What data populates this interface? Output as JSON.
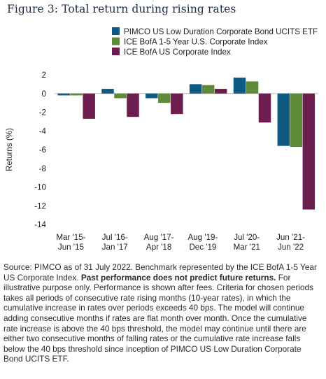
{
  "figure_title": "Figure 3: Total return during rising rates",
  "chart_data": {
    "type": "bar",
    "title": "",
    "xlabel": "",
    "ylabel": "Returns (%)",
    "ylim": [
      -14,
      2
    ],
    "yticks": [
      2,
      0,
      -2,
      -4,
      -6,
      -8,
      -10,
      -12,
      -14
    ],
    "grid": false,
    "legend_position": "top-right",
    "categories": [
      [
        "Mar '15-",
        "Jun '15"
      ],
      [
        "Jul '16-",
        "Jan '17"
      ],
      [
        "Aug '17-",
        "Apr '18"
      ],
      [
        "Aug '19-",
        "Dec '19"
      ],
      [
        "Jul '20-",
        "Mar '21"
      ],
      [
        "Jun '21-",
        "Jun '22"
      ]
    ],
    "series": [
      {
        "name": "PIMCO US Low Duration Corporate Bond UCITS ETF",
        "color": "#0e5a82",
        "values": [
          -0.2,
          0.5,
          -0.5,
          1.0,
          1.7,
          -5.6
        ]
      },
      {
        "name": "ICE BofA 1-5 Year U.S. Corporate Index",
        "color": "#5f8a3a",
        "values": [
          -0.2,
          -0.5,
          -1.0,
          0.9,
          1.3,
          -5.7
        ]
      },
      {
        "name": "ICE BofA US Corporate Index",
        "color": "#6c1f4e",
        "values": [
          -2.7,
          -2.5,
          -2.2,
          0.5,
          -3.1,
          -12.4
        ]
      }
    ]
  },
  "footnote": {
    "lead": "Source: PIMCO as of 31 July 2022. Benchmark represented by the ICE BofA 1-5 Year US Corporate Index.",
    "bold": "Past performance does not predict future returns.",
    "body": "For illustrative purpose only. Performance is shown after fees. Criteria for chosen periods takes all periods of consecutive rate rising months (10-year rates), in which the cumulative increase in rates over periods exceeds 40 bps. The model will continue adding consecutive months if rates are flat month over month. Once the cumulative rate increase is above the 40 bps threshold, the model may continue until there are either two consecutive months of falling rates or the cumulative rate increase falls below the 40 bps threshold since inception of PIMCO US Low Duration Corporate Bond UCITS ETF."
  }
}
